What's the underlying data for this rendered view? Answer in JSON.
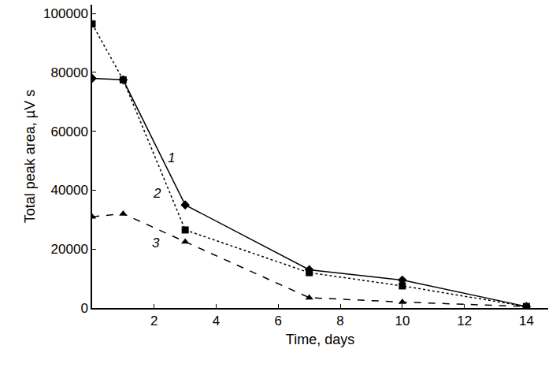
{
  "chart_data": {
    "type": "line",
    "x_label": "Time, days",
    "y_label": "Total peak area, µV s",
    "x": [
      0,
      1,
      3,
      7,
      10,
      14
    ],
    "series": [
      {
        "name": "1",
        "color": "#000000",
        "marker": "diamond",
        "line_style": "solid",
        "values": [
          78000,
          77500,
          35000,
          13000,
          9500,
          500
        ],
        "label_at": [
          2.55,
          51000
        ]
      },
      {
        "name": "2",
        "color": "#000000",
        "marker": "square",
        "line_style": "dot",
        "values": [
          96500,
          77500,
          26500,
          12000,
          7500,
          500
        ],
        "label_at": [
          2.1,
          39000
        ]
      },
      {
        "name": "3",
        "color": "#000000",
        "marker": "triangle-up",
        "line_style": "dash",
        "values": [
          31000,
          32000,
          22500,
          3500,
          2000,
          500
        ],
        "label_at": [
          2.05,
          22000
        ]
      }
    ],
    "xlim": [
      0,
      14.7
    ],
    "ylim": [
      0,
      103000
    ],
    "xticks": [
      2,
      4,
      6,
      8,
      10,
      12,
      14
    ],
    "yticks": [
      0,
      20000,
      40000,
      60000,
      80000,
      100000
    ],
    "grid": false
  }
}
